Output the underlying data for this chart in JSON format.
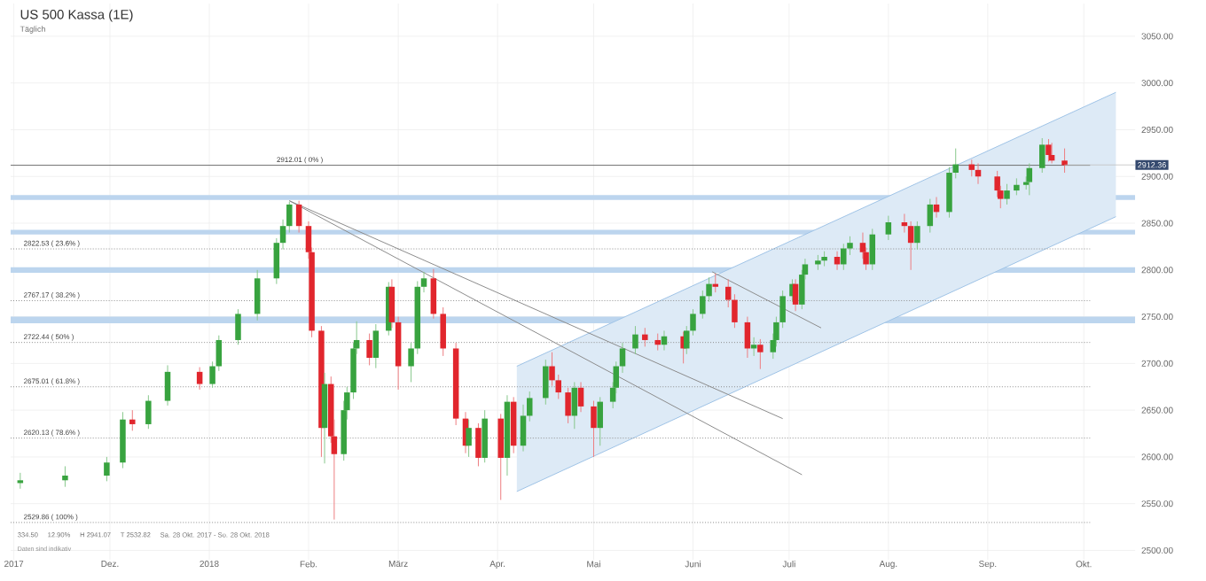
{
  "chart_data": {
    "type": "candlestick",
    "title": "US 500 Kassa (1E)",
    "subtitle": "Täglich",
    "x": [
      "2017-11-03",
      "2017-11-17",
      "2017-11-30",
      "2017-12-05",
      "2017-12-08",
      "2017-12-13",
      "2017-12-19",
      "2017-12-29",
      "2018-01-02",
      "2018-01-04",
      "2018-01-10",
      "2018-01-16",
      "2018-01-22",
      "2018-01-24",
      "2018-01-26",
      "2018-01-29",
      "2018-02-01",
      "2018-02-02",
      "2018-02-05",
      "2018-02-06",
      "2018-02-08",
      "2018-02-09",
      "2018-02-12",
      "2018-02-13",
      "2018-02-15",
      "2018-02-16",
      "2018-02-20",
      "2018-02-22",
      "2018-02-26",
      "2018-02-27",
      "2018-03-01",
      "2018-03-05",
      "2018-03-07",
      "2018-03-09",
      "2018-03-12",
      "2018-03-15",
      "2018-03-19",
      "2018-03-22",
      "2018-03-23",
      "2018-03-26",
      "2018-03-28",
      "2018-04-02",
      "2018-04-04",
      "2018-04-06",
      "2018-04-09",
      "2018-04-11",
      "2018-04-16",
      "2018-04-18",
      "2018-04-20",
      "2018-04-23",
      "2018-04-25",
      "2018-04-27",
      "2018-05-01",
      "2018-05-03",
      "2018-05-07",
      "2018-05-08",
      "2018-05-10",
      "2018-05-14",
      "2018-05-17",
      "2018-05-21",
      "2018-05-23",
      "2018-05-29",
      "2018-05-30",
      "2018-06-01",
      "2018-06-04",
      "2018-06-06",
      "2018-06-08",
      "2018-06-12",
      "2018-06-14",
      "2018-06-18",
      "2018-06-20",
      "2018-06-22",
      "2018-06-26",
      "2018-06-27",
      "2018-06-29",
      "2018-07-02",
      "2018-07-03",
      "2018-07-05",
      "2018-07-06",
      "2018-07-10",
      "2018-07-12",
      "2018-07-16",
      "2018-07-18",
      "2018-07-20",
      "2018-07-24",
      "2018-07-25",
      "2018-07-27",
      "2018-08-01",
      "2018-08-06",
      "2018-08-08",
      "2018-08-10",
      "2018-08-14",
      "2018-08-16",
      "2018-08-20",
      "2018-08-22",
      "2018-08-27",
      "2018-08-29",
      "2018-09-04",
      "2018-09-05",
      "2018-09-07",
      "2018-09-10",
      "2018-09-13",
      "2018-09-14",
      "2018-09-18",
      "2018-09-20",
      "2018-09-21",
      "2018-09-25"
    ],
    "ohlc": [
      [
        2572,
        2583,
        2566,
        2575
      ],
      [
        2575,
        2590,
        2568,
        2580
      ],
      [
        2580,
        2600,
        2574,
        2594
      ],
      [
        2594,
        2648,
        2588,
        2640
      ],
      [
        2640,
        2650,
        2628,
        2635
      ],
      [
        2635,
        2666,
        2630,
        2660
      ],
      [
        2660,
        2698,
        2655,
        2691
      ],
      [
        2691,
        2696,
        2672,
        2678
      ],
      [
        2678,
        2702,
        2674,
        2697
      ],
      [
        2697,
        2730,
        2692,
        2725
      ],
      [
        2725,
        2758,
        2720,
        2753
      ],
      [
        2753,
        2800,
        2746,
        2791
      ],
      [
        2791,
        2834,
        2785,
        2829
      ],
      [
        2829,
        2854,
        2822,
        2847
      ],
      [
        2847,
        2873,
        2840,
        2870
      ],
      [
        2870,
        2874,
        2840,
        2847
      ],
      [
        2847,
        2852,
        2812,
        2819
      ],
      [
        2819,
        2824,
        2728,
        2735
      ],
      [
        2735,
        2740,
        2600,
        2631
      ],
      [
        2631,
        2690,
        2593,
        2678
      ],
      [
        2678,
        2686,
        2615,
        2622
      ],
      [
        2622,
        2640,
        2533,
        2603
      ],
      [
        2603,
        2660,
        2596,
        2650
      ],
      [
        2650,
        2675,
        2640,
        2669
      ],
      [
        2669,
        2722,
        2662,
        2716
      ],
      [
        2716,
        2745,
        2710,
        2725
      ],
      [
        2725,
        2732,
        2698,
        2706
      ],
      [
        2706,
        2742,
        2695,
        2735
      ],
      [
        2735,
        2787,
        2730,
        2782
      ],
      [
        2782,
        2790,
        2738,
        2744
      ],
      [
        2744,
        2750,
        2672,
        2697
      ],
      [
        2697,
        2722,
        2680,
        2716
      ],
      [
        2716,
        2788,
        2710,
        2782
      ],
      [
        2782,
        2798,
        2776,
        2791
      ],
      [
        2791,
        2801,
        2748,
        2753
      ],
      [
        2753,
        2760,
        2708,
        2716
      ],
      [
        2716,
        2722,
        2634,
        2641
      ],
      [
        2641,
        2648,
        2604,
        2612
      ],
      [
        2612,
        2640,
        2600,
        2631
      ],
      [
        2631,
        2636,
        2590,
        2599
      ],
      [
        2599,
        2650,
        2594,
        2641
      ],
      [
        2641,
        2646,
        2554,
        2599
      ],
      [
        2599,
        2666,
        2580,
        2659
      ],
      [
        2659,
        2664,
        2604,
        2612
      ],
      [
        2612,
        2656,
        2606,
        2644
      ],
      [
        2644,
        2670,
        2638,
        2663
      ],
      [
        2663,
        2704,
        2656,
        2697
      ],
      [
        2697,
        2712,
        2676,
        2682
      ],
      [
        2682,
        2688,
        2662,
        2669
      ],
      [
        2669,
        2674,
        2636,
        2644
      ],
      [
        2644,
        2680,
        2630,
        2674
      ],
      [
        2674,
        2680,
        2648,
        2654
      ],
      [
        2654,
        2660,
        2600,
        2631
      ],
      [
        2631,
        2664,
        2612,
        2659
      ],
      [
        2659,
        2680,
        2652,
        2674
      ],
      [
        2674,
        2702,
        2668,
        2697
      ],
      [
        2697,
        2722,
        2690,
        2716
      ],
      [
        2716,
        2740,
        2710,
        2731
      ],
      [
        2731,
        2738,
        2718,
        2725
      ],
      [
        2725,
        2732,
        2714,
        2720
      ],
      [
        2720,
        2735,
        2714,
        2729
      ],
      [
        2729,
        2734,
        2700,
        2716
      ],
      [
        2716,
        2740,
        2710,
        2735
      ],
      [
        2735,
        2758,
        2730,
        2753
      ],
      [
        2753,
        2778,
        2748,
        2772
      ],
      [
        2772,
        2792,
        2766,
        2785
      ],
      [
        2785,
        2796,
        2776,
        2782
      ],
      [
        2782,
        2790,
        2760,
        2768
      ],
      [
        2768,
        2774,
        2738,
        2744
      ],
      [
        2744,
        2750,
        2706,
        2716
      ],
      [
        2716,
        2728,
        2708,
        2720
      ],
      [
        2720,
        2726,
        2694,
        2712
      ],
      [
        2712,
        2732,
        2705,
        2725
      ],
      [
        2725,
        2750,
        2718,
        2744
      ],
      [
        2744,
        2778,
        2738,
        2772
      ],
      [
        2772,
        2790,
        2766,
        2785
      ],
      [
        2785,
        2790,
        2756,
        2763
      ],
      [
        2763,
        2800,
        2758,
        2795
      ],
      [
        2795,
        2812,
        2790,
        2806
      ],
      [
        2806,
        2816,
        2800,
        2810
      ],
      [
        2810,
        2820,
        2804,
        2814
      ],
      [
        2814,
        2820,
        2800,
        2806
      ],
      [
        2806,
        2828,
        2800,
        2823
      ],
      [
        2823,
        2836,
        2816,
        2829
      ],
      [
        2829,
        2840,
        2812,
        2819
      ],
      [
        2819,
        2824,
        2800,
        2806
      ],
      [
        2806,
        2844,
        2800,
        2838
      ],
      [
        2838,
        2858,
        2832,
        2851
      ],
      [
        2851,
        2860,
        2840,
        2847
      ],
      [
        2847,
        2852,
        2800,
        2829
      ],
      [
        2829,
        2852,
        2822,
        2847
      ],
      [
        2847,
        2876,
        2840,
        2870
      ],
      [
        2870,
        2878,
        2856,
        2862
      ],
      [
        2862,
        2910,
        2856,
        2904
      ],
      [
        2904,
        2930,
        2898,
        2913
      ],
      [
        2913,
        2918,
        2900,
        2907
      ],
      [
        2907,
        2914,
        2892,
        2900
      ],
      [
        2900,
        2906,
        2878,
        2885
      ],
      [
        2885,
        2890,
        2866,
        2876
      ],
      [
        2876,
        2892,
        2870,
        2885
      ],
      [
        2885,
        2898,
        2880,
        2891
      ],
      [
        2891,
        2900,
        2886,
        2894
      ],
      [
        2894,
        2914,
        2880,
        2909
      ],
      [
        2909,
        2941,
        2904,
        2934
      ],
      [
        2934,
        2940,
        2916,
        2923
      ],
      [
        2923,
        2936,
        2914,
        2917
      ],
      [
        2917,
        2930,
        2904,
        2912
      ]
    ],
    "series": [
      {
        "type": "line",
        "color": "#9fc3e6",
        "x": [
          "2018-04-07",
          "2018-10-11"
        ],
        "values": [
          null,
          null
        ],
        "lower": [
          2563,
          2857
        ],
        "upper": [
          2697,
          2990
        ]
      },
      {
        "type": "line",
        "color": "#9fc3e6",
        "x": [
          "2018-04-07",
          "2018-10-11"
        ],
        "values": [
          2697,
          2990
        ]
      },
      {
        "type": "line",
        "color": "#9fc3e6",
        "x": [
          "2018-04-07",
          "2018-10-11"
        ],
        "values": [
          2563,
          2857
        ]
      },
      {
        "type": "line",
        "color": "#8c8c8c",
        "x": [
          "2018-01-26",
          "2018-06-29"
        ],
        "values": [
          2874,
          2641
        ]
      },
      {
        "type": "line",
        "color": "#8c8c8c",
        "x": [
          "2018-01-26",
          "2018-07-05"
        ],
        "values": [
          2874,
          2581
        ]
      },
      {
        "type": "line",
        "color": "#8c8c8c",
        "x": [
          "2018-06-07",
          "2018-07-11"
        ],
        "values": [
          2798,
          2738
        ]
      }
    ],
    "bands": [
      {
        "axis": "y",
        "from": 2875,
        "to": 2880,
        "color": "#bcd5ee"
      },
      {
        "axis": "y",
        "from": 2838,
        "to": 2843,
        "color": "#bcd5ee"
      },
      {
        "axis": "y",
        "from": 2797,
        "to": 2803,
        "color": "#bcd5ee"
      },
      {
        "axis": "y",
        "from": 2743,
        "to": 2750,
        "color": "#bcd5ee"
      }
    ],
    "ref_lines": [
      {
        "axis": "y",
        "value": 2912.01,
        "label": "2912.01 ( 0% )",
        "color": "#6e6e6e",
        "line_style": "solid"
      },
      {
        "axis": "y",
        "value": 2822.53,
        "label": "2822.53 ( 23.6% )",
        "color": "#8c8c8c",
        "line_style": "dotted"
      },
      {
        "axis": "y",
        "value": 2767.17,
        "label": "2767.17 ( 38.2% )",
        "color": "#8c8c8c",
        "line_style": "dotted"
      },
      {
        "axis": "y",
        "value": 2722.44,
        "label": "2722.44 ( 50% )",
        "color": "#8c8c8c",
        "line_style": "dotted"
      },
      {
        "axis": "y",
        "value": 2675.01,
        "label": "2675.01 ( 61.8% )",
        "color": "#8c8c8c",
        "line_style": "dotted"
      },
      {
        "axis": "y",
        "value": 2620.13,
        "label": "2620.13 ( 78.6% )",
        "color": "#8c8c8c",
        "line_style": "dotted"
      },
      {
        "axis": "y",
        "value": 2529.86,
        "label": "2529.86 ( 100% )",
        "color": "#8c8c8c",
        "line_style": "dotted"
      }
    ],
    "annotations": [
      {
        "text": "2912.36",
        "x": "2018-09-25",
        "y": 2912.36
      },
      "334.50",
      "12.90%",
      "H 2941.07",
      "T 2532.82",
      "Sa. 28 Okt. 2017 - So. 28 Okt. 2018",
      "Daten sind indikativ"
    ],
    "xlim": [
      "2017-10-31",
      "2018-10-17"
    ],
    "xticks": [
      {
        "value": "2017-11-01",
        "label": "2017"
      },
      {
        "value": "2017-12-01",
        "label": "Dez."
      },
      {
        "value": "2018-01-01",
        "label": "2018"
      },
      {
        "value": "2018-02-01",
        "label": "Feb."
      },
      {
        "value": "2018-03-01",
        "label": "März"
      },
      {
        "value": "2018-04-01",
        "label": "Apr."
      },
      {
        "value": "2018-05-01",
        "label": "Mai"
      },
      {
        "value": "2018-06-01",
        "label": "Juni"
      },
      {
        "value": "2018-07-01",
        "label": "Juli"
      },
      {
        "value": "2018-08-01",
        "label": "Aug."
      },
      {
        "value": "2018-09-01",
        "label": "Sep."
      },
      {
        "value": "2018-10-01",
        "label": "Okt."
      }
    ],
    "ylim": [
      2490,
      3085
    ],
    "yticks": [
      {
        "value": 2500,
        "label": "2500.00"
      },
      {
        "value": 2550,
        "label": "2550.00"
      },
      {
        "value": 2600,
        "label": "2600.00"
      },
      {
        "value": 2650,
        "label": "2650.00"
      },
      {
        "value": 2700,
        "label": "2700.00"
      },
      {
        "value": 2750,
        "label": "2750.00"
      },
      {
        "value": 2800,
        "label": "2800.00"
      },
      {
        "value": 2850,
        "label": "2850.00"
      },
      {
        "value": 2900,
        "label": "2900.00"
      },
      {
        "value": 2950,
        "label": "2950.00"
      },
      {
        "value": 3000,
        "label": "3000.00"
      },
      {
        "value": 3050,
        "label": "3050.00"
      }
    ],
    "grid": true
  }
}
